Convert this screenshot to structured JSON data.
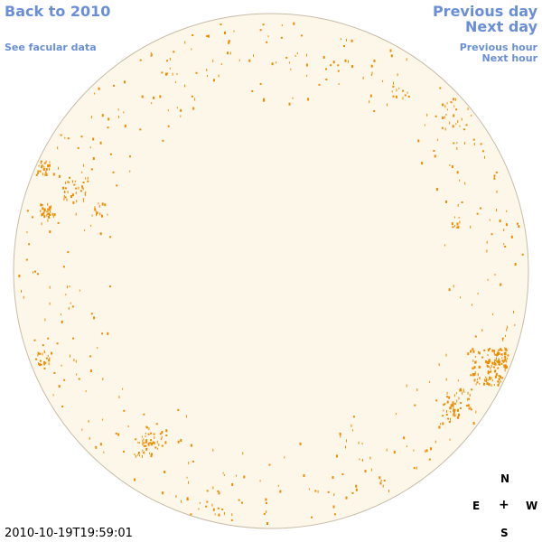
{
  "nav": {
    "back_to_year": "Back to 2010",
    "see_facular": "See facular data",
    "previous_day": "Previous day",
    "next_day": "Next day",
    "previous_hour": "Previous hour",
    "next_hour": "Next hour"
  },
  "compass": {
    "north": "N",
    "south": "S",
    "east": "E",
    "west": "W",
    "center": "+"
  },
  "timestamp": "2010-10-19T19:59:01",
  "colors": {
    "disk_fill": "#fdf7ea",
    "disk_edge": "#c8bca8",
    "network": "#f08c00",
    "link": "#6a8fd8"
  }
}
